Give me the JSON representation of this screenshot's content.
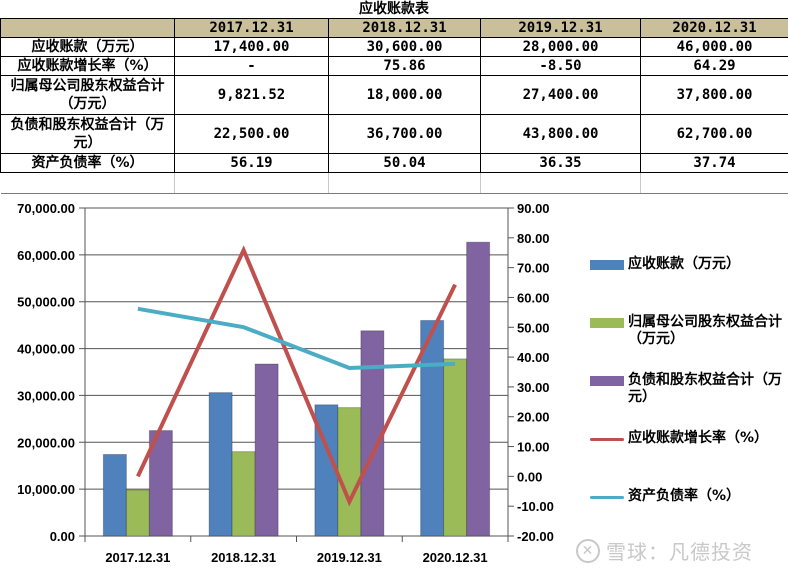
{
  "table": {
    "title": "应收账款表",
    "header": [
      "",
      "2017.12.31",
      "2018.12.31",
      "2019.12.31",
      "2020.12.31"
    ],
    "header_bg": "#c9bf9a",
    "rows": [
      {
        "label": "应收账款（万元）",
        "values": [
          "17,400.00",
          "30,600.00",
          "28,000.00",
          "46,000.00"
        ]
      },
      {
        "label": "应收账款增长率（%）",
        "values": [
          "-",
          "75.86",
          "-8.50",
          "64.29"
        ]
      },
      {
        "label": "归属母公司股东权益合计（万元）",
        "values": [
          "9,821.52",
          "18,000.00",
          "27,400.00",
          "37,800.00"
        ]
      },
      {
        "label": "负债和股东权益合计（万元）",
        "values": [
          "22,500.00",
          "36,700.00",
          "43,800.00",
          "62,700.00"
        ]
      },
      {
        "label": "资产负债率（%）",
        "values": [
          "56.19",
          "50.04",
          "36.35",
          "37.74"
        ]
      }
    ]
  },
  "chart_data": {
    "type": "bar",
    "title": "",
    "categories": [
      "2017.12.31",
      "2018.12.31",
      "2019.12.31",
      "2020.12.31"
    ],
    "series": [
      {
        "name": "应收账款（万元）",
        "kind": "bar",
        "axis": "left",
        "color": "#4f81bd",
        "values": [
          17400,
          30600,
          28000,
          46000
        ]
      },
      {
        "name": "归属母公司股东权益合计（万元）",
        "kind": "bar",
        "axis": "left",
        "color": "#9bbb59",
        "values": [
          9821.52,
          18000,
          27400,
          37800
        ]
      },
      {
        "name": "负债和股东权益合计（万元）",
        "kind": "bar",
        "axis": "left",
        "color": "#8064a2",
        "values": [
          22500,
          36700,
          43800,
          62700
        ]
      },
      {
        "name": "应收账款增长率（%）",
        "kind": "line",
        "axis": "right",
        "color": "#c0504d",
        "values": [
          0,
          75.86,
          -8.5,
          64.29
        ]
      },
      {
        "name": "资产负债率（%）",
        "kind": "line",
        "axis": "right",
        "color": "#4bacc6",
        "values": [
          56.19,
          50.04,
          36.35,
          37.74
        ]
      }
    ],
    "left_axis": {
      "min": 0,
      "max": 70000,
      "step": 10000,
      "ticks": [
        "70,000.00",
        "60,000.00",
        "50,000.00",
        "40,000.00",
        "30,000.00",
        "20,000.00",
        "10,000.00",
        "0.00"
      ]
    },
    "right_axis": {
      "min": -20,
      "max": 90,
      "step": 10,
      "ticks": [
        "90.00",
        "80.00",
        "70.00",
        "60.00",
        "50.00",
        "40.00",
        "30.00",
        "20.00",
        "10.00",
        "0.00",
        "-10.00",
        "-20.00"
      ]
    },
    "xlabel": "",
    "ylabel": "",
    "grid": true,
    "legend_position": "right"
  },
  "legend": [
    {
      "label": "应收账款（万元）",
      "type": "box",
      "color": "#4f81bd"
    },
    {
      "label": "归属母公司股东权益合计（万元）",
      "type": "box",
      "color": "#9bbb59"
    },
    {
      "label": "负债和股东权益合计（万元）",
      "type": "box",
      "color": "#8064a2"
    },
    {
      "label": "应收账款增长率（%）",
      "type": "line",
      "color": "#c0504d"
    },
    {
      "label": "资产负债率（%）",
      "type": "line",
      "color": "#4bacc6"
    }
  ],
  "watermark": {
    "text": "雪球：凡德投资"
  }
}
